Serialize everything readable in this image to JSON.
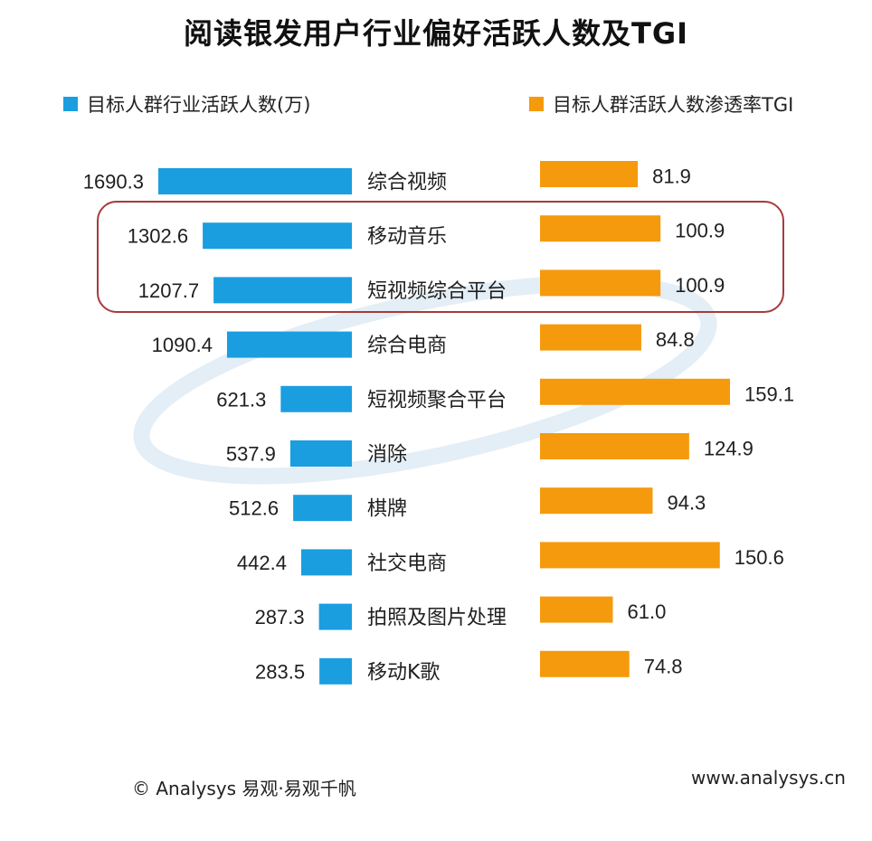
{
  "title": "阅读银发用户行业偏好活跃人数及TGI",
  "legend": {
    "left_label": "目标人群行业活跃人数(万)",
    "right_label": "目标人群活跃人数渗透率TGI"
  },
  "colors": {
    "users_bar": "#1a9ee0",
    "tgi_bar": "#f59a0c",
    "highlight_border": "#a83a3a"
  },
  "chart_data": {
    "type": "bar",
    "categories": [
      "综合视频",
      "移动音乐",
      "短视频综合平台",
      "综合电商",
      "短视频聚合平台",
      "消除",
      "棋牌",
      "社交电商",
      "拍照及图片处理",
      "移动K歌"
    ],
    "series": [
      {
        "name": "目标人群行业活跃人数(万)",
        "values": [
          1690.3,
          1302.6,
          1207.7,
          1090.4,
          621.3,
          537.9,
          512.6,
          442.4,
          287.3,
          283.5
        ],
        "labels": [
          "1690.3",
          "1302.6",
          "1207.7",
          "1090.4",
          "621.3",
          "537.9",
          "512.6",
          "442.4",
          "287.3",
          "283.5"
        ]
      },
      {
        "name": "目标人群活跃人数渗透率TGI",
        "values": [
          81.9,
          100.9,
          100.9,
          84.8,
          159.1,
          124.9,
          94.3,
          150.6,
          61.0,
          74.8
        ],
        "labels": [
          "81.9",
          "100.9",
          "100.9",
          "84.8",
          "159.1",
          "124.9",
          "94.3",
          "150.6",
          "61.0",
          "74.8"
        ]
      }
    ],
    "orientation": "horizontal-butterfly",
    "highlighted_categories": [
      "移动音乐",
      "短视频综合平台"
    ]
  },
  "footer": {
    "source": "© Analysys 易观·易观千帆",
    "website": "www.analysys.cn"
  }
}
